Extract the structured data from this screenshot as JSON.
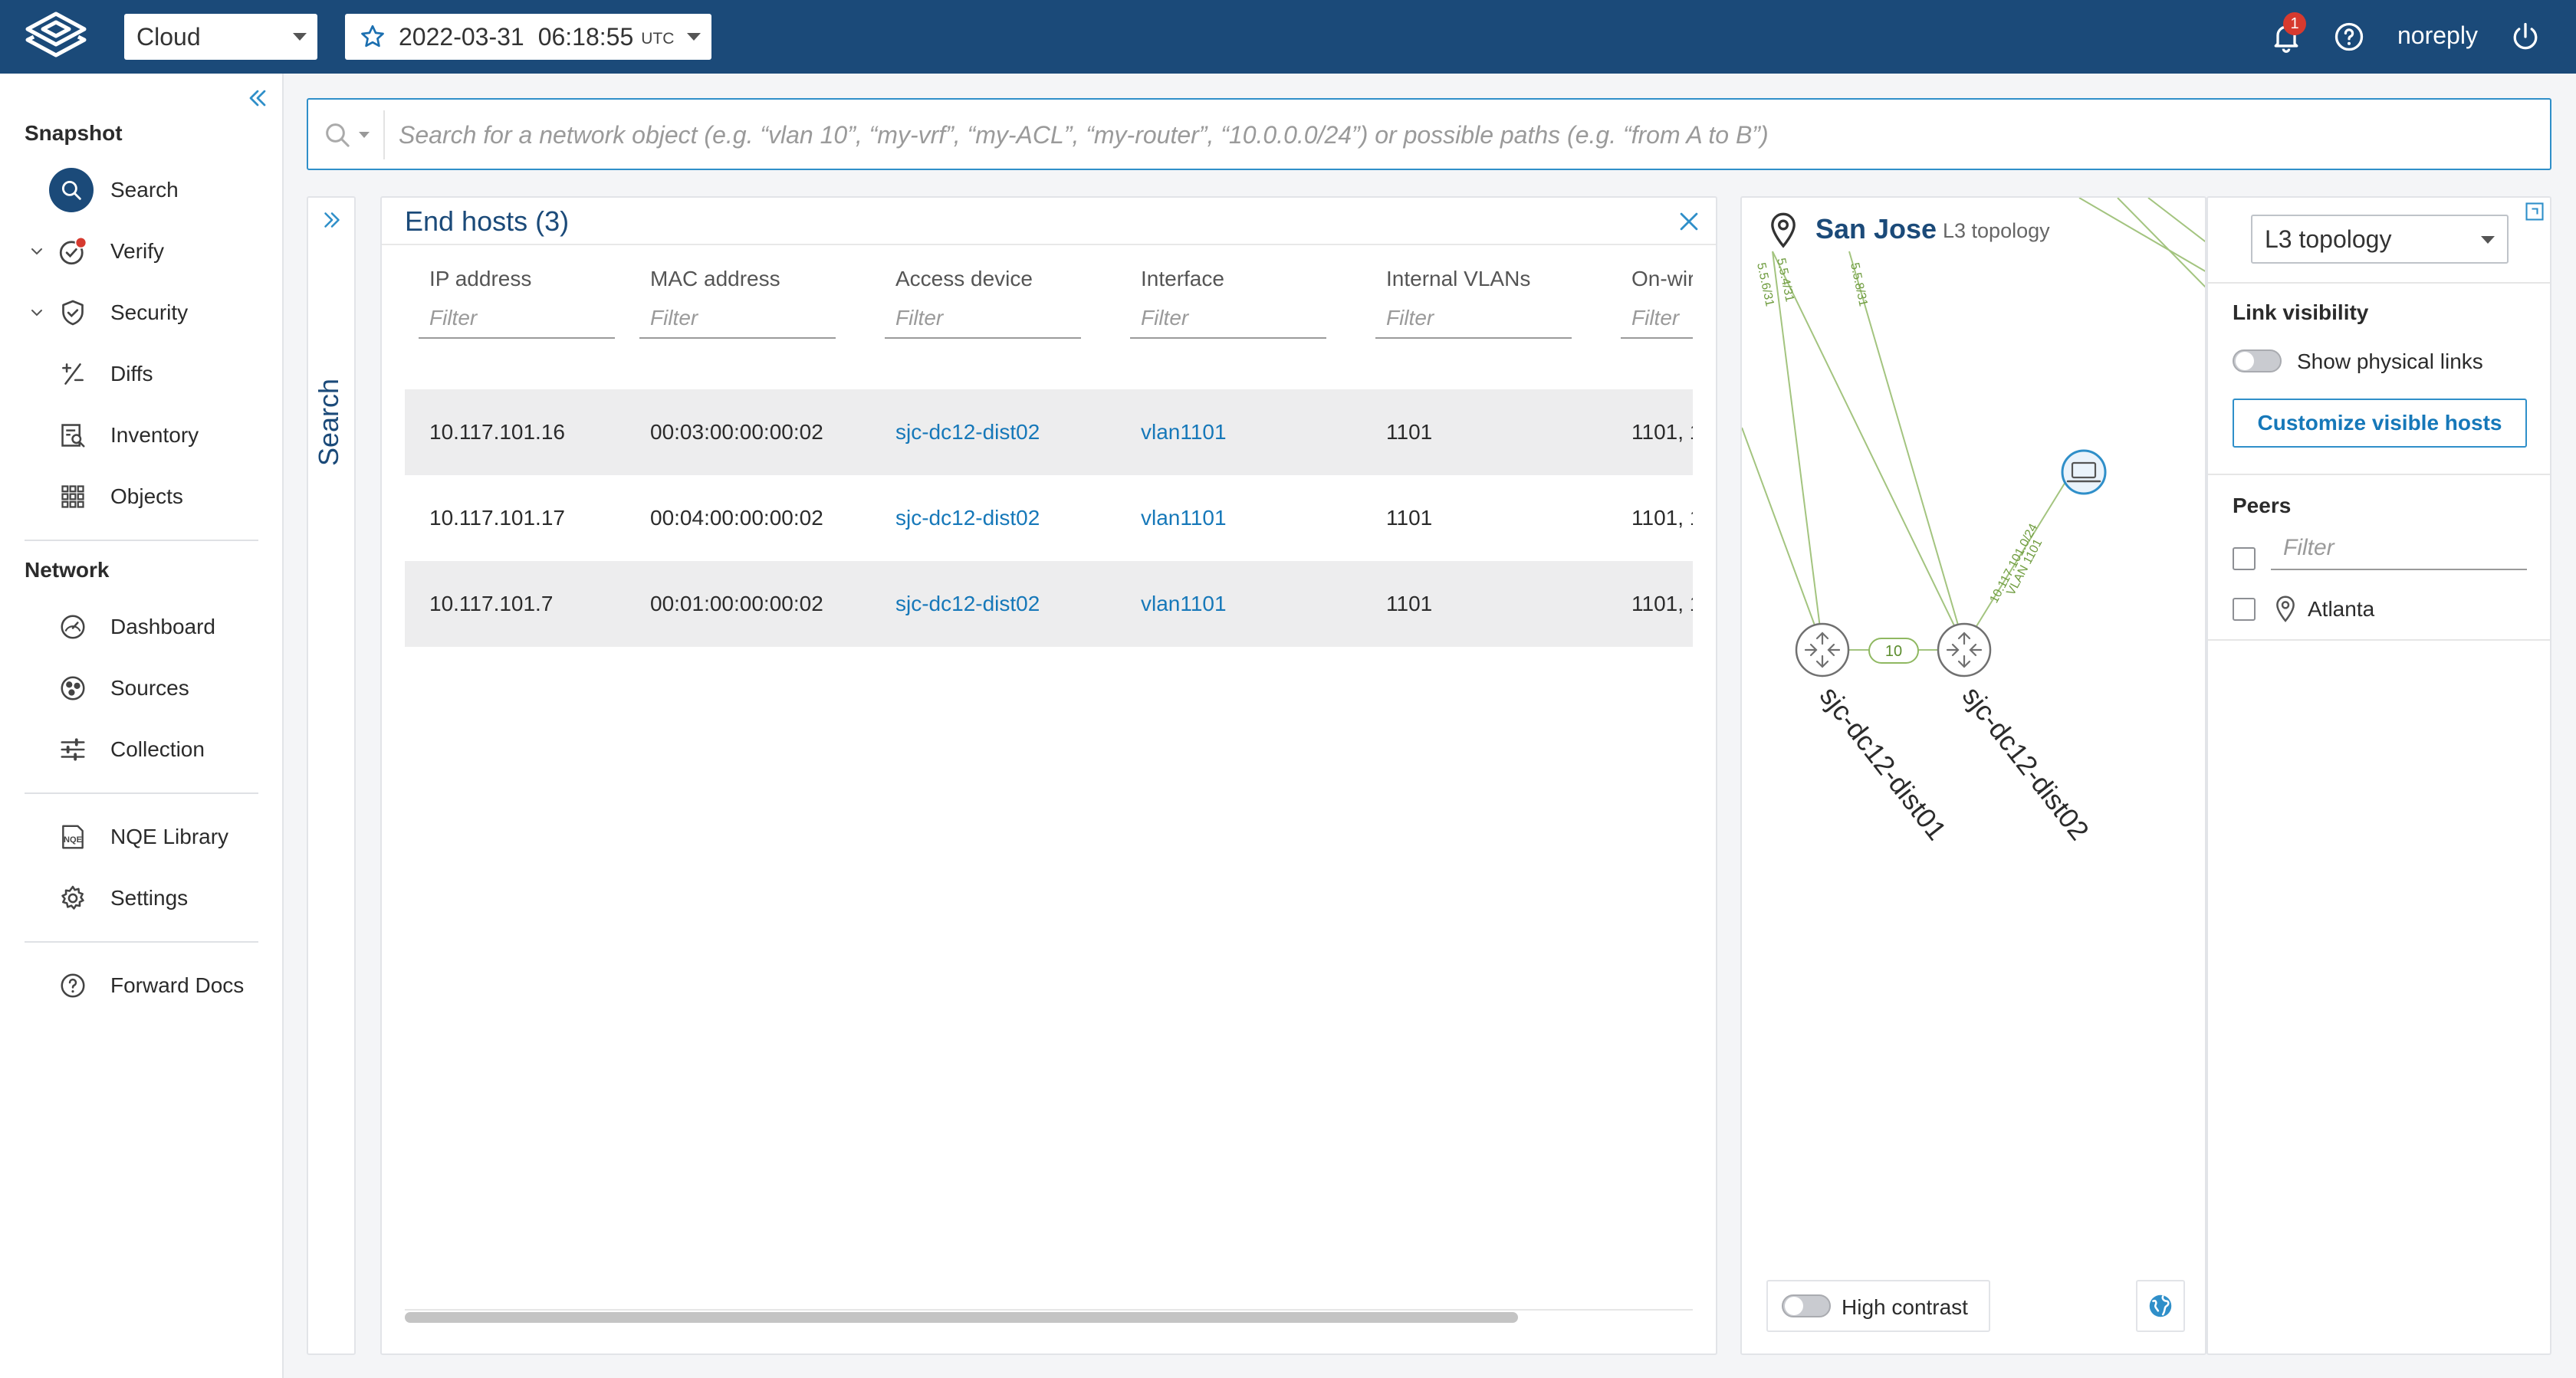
{
  "topbar": {
    "environment": "Cloud",
    "snapshot_date": "2022-03-31",
    "snapshot_time": "06:18:55",
    "timezone": "UTC",
    "notification_count": "1",
    "username": "noreply",
    "brand_color": "#1b4a79"
  },
  "sidebar": {
    "snapshot_title": "Snapshot",
    "snapshot_items": [
      {
        "label": "Search",
        "icon": "search-icon"
      },
      {
        "label": "Verify",
        "icon": "verify-icon"
      },
      {
        "label": "Security",
        "icon": "shield-icon"
      },
      {
        "label": "Diffs",
        "icon": "diff-icon"
      },
      {
        "label": "Inventory",
        "icon": "inventory-icon"
      },
      {
        "label": "Objects",
        "icon": "grid-icon"
      }
    ],
    "network_title": "Network",
    "network_items": [
      {
        "label": "Dashboard",
        "icon": "gauge-icon"
      },
      {
        "label": "Sources",
        "icon": "sources-icon"
      },
      {
        "label": "Collection",
        "icon": "sliders-icon"
      }
    ],
    "extra_items": [
      {
        "label": "NQE Library",
        "icon": "nqe-icon"
      },
      {
        "label": "Settings",
        "icon": "gear-icon"
      }
    ],
    "docs_item": {
      "label": "Forward Docs",
      "icon": "help-icon"
    }
  },
  "search": {
    "placeholder": "Search for a network object (e.g. “vlan 10”, “my-vrf”, “my-ACL”, “my-router”, “10.0.0.0/24”) or possible paths (e.g. “from A to B”)",
    "rail_label": "Search"
  },
  "hosts": {
    "title": "End hosts (3)",
    "filter_placeholder": "Filter",
    "columns": [
      "IP address",
      "MAC address",
      "Access device",
      "Interface",
      "Internal VLANs",
      "On-wir"
    ],
    "rows": [
      {
        "ip": "10.117.101.16",
        "mac": "00:03:00:00:00:02",
        "device": "sjc-dc12-dist02",
        "interface": "vlan1101",
        "vlans": "1101",
        "onwire": "1101, 1"
      },
      {
        "ip": "10.117.101.17",
        "mac": "00:04:00:00:00:02",
        "device": "sjc-dc12-dist02",
        "interface": "vlan1101",
        "vlans": "1101",
        "onwire": "1101, 1"
      },
      {
        "ip": "10.117.101.7",
        "mac": "00:01:00:00:00:02",
        "device": "sjc-dc12-dist02",
        "interface": "vlan1101",
        "vlans": "1101",
        "onwire": "1101, 1"
      }
    ]
  },
  "topology": {
    "site": "San Jose",
    "subtitle": "L3 topology",
    "link_labels": [
      "5.5.4/31",
      "5.5.6/31",
      "5.5.8/31"
    ],
    "host_subnet": "10.117.101.0/24",
    "host_vlan": "VLAN 1101",
    "link_count": "10",
    "device_1": "sjc-dc12-dist01",
    "device_2": "sjc-dc12-dist02",
    "high_contrast_label": "High contrast",
    "link_color": "#a3c47f"
  },
  "controls": {
    "view_select": "L3 topology",
    "link_visibility_title": "Link visibility",
    "show_physical_links": "Show physical links",
    "customize_button": "Customize visible hosts",
    "peers_title": "Peers",
    "filter_placeholder": "Filter",
    "peers": [
      "Atlanta"
    ]
  }
}
